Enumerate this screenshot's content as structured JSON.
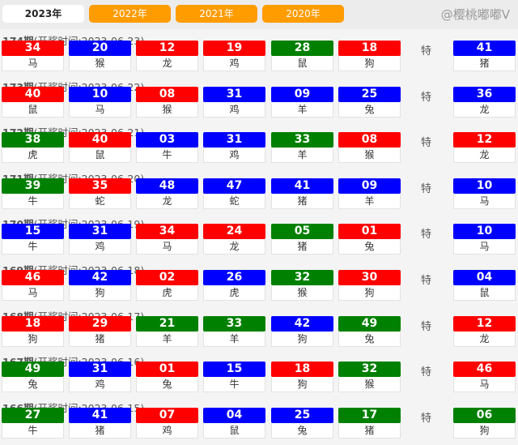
{
  "tabs": [
    {
      "label": "2023年",
      "active": true
    },
    {
      "label": "2022年"
    },
    {
      "label": "2021年"
    },
    {
      "label": "2020年"
    }
  ],
  "colors": {
    "red": "#ff0000",
    "blue": "#0000ff",
    "green": "#008000",
    "tab": "#ff9c00"
  },
  "special_label": "特",
  "watermark": "@樱桃嘟嘟V",
  "periods": [
    {
      "num": "174期",
      "time": "(开奖时间:2023-06-23)",
      "balls": [
        [
          "34",
          "red",
          "马"
        ],
        [
          "20",
          "blue",
          "猴"
        ],
        [
          "12",
          "red",
          "龙"
        ],
        [
          "19",
          "red",
          "鸡"
        ],
        [
          "28",
          "green",
          "鼠"
        ],
        [
          "18",
          "red",
          "狗"
        ]
      ],
      "special": [
        "41",
        "blue",
        "猪"
      ]
    },
    {
      "num": "173期",
      "time": "(开奖时间:2023-06-22)",
      "balls": [
        [
          "40",
          "red",
          "鼠"
        ],
        [
          "10",
          "blue",
          "马"
        ],
        [
          "08",
          "red",
          "猴"
        ],
        [
          "31",
          "blue",
          "鸡"
        ],
        [
          "09",
          "blue",
          "羊"
        ],
        [
          "25",
          "blue",
          "兔"
        ]
      ],
      "special": [
        "36",
        "blue",
        "龙"
      ]
    },
    {
      "num": "172期",
      "time": "(开奖时间:2023-06-21)",
      "balls": [
        [
          "38",
          "green",
          "虎"
        ],
        [
          "40",
          "red",
          "鼠"
        ],
        [
          "03",
          "blue",
          "牛"
        ],
        [
          "31",
          "blue",
          "鸡"
        ],
        [
          "33",
          "green",
          "羊"
        ],
        [
          "08",
          "red",
          "猴"
        ]
      ],
      "special": [
        "12",
        "red",
        "龙"
      ]
    },
    {
      "num": "171期",
      "time": "(开奖时间:2023-06-20)",
      "balls": [
        [
          "39",
          "green",
          "牛"
        ],
        [
          "35",
          "red",
          "蛇"
        ],
        [
          "48",
          "blue",
          "龙"
        ],
        [
          "47",
          "blue",
          "蛇"
        ],
        [
          "41",
          "blue",
          "猪"
        ],
        [
          "09",
          "blue",
          "羊"
        ]
      ],
      "special": [
        "10",
        "blue",
        "马"
      ]
    },
    {
      "num": "170期",
      "time": "(开奖时间:2023-06-19)",
      "balls": [
        [
          "15",
          "blue",
          "牛"
        ],
        [
          "31",
          "blue",
          "鸡"
        ],
        [
          "34",
          "red",
          "马"
        ],
        [
          "24",
          "red",
          "龙"
        ],
        [
          "05",
          "green",
          "猪"
        ],
        [
          "01",
          "red",
          "兔"
        ]
      ],
      "special": [
        "10",
        "blue",
        "马"
      ]
    },
    {
      "num": "169期",
      "time": "(开奖时间:2023-06-18)",
      "balls": [
        [
          "46",
          "red",
          "马"
        ],
        [
          "42",
          "blue",
          "狗"
        ],
        [
          "02",
          "red",
          "虎"
        ],
        [
          "26",
          "blue",
          "虎"
        ],
        [
          "32",
          "green",
          "猴"
        ],
        [
          "30",
          "red",
          "狗"
        ]
      ],
      "special": [
        "04",
        "blue",
        "鼠"
      ]
    },
    {
      "num": "168期",
      "time": "(开奖时间:2023-06-17)",
      "balls": [
        [
          "18",
          "red",
          "狗"
        ],
        [
          "29",
          "red",
          "猪"
        ],
        [
          "21",
          "green",
          "羊"
        ],
        [
          "33",
          "green",
          "羊"
        ],
        [
          "42",
          "blue",
          "狗"
        ],
        [
          "49",
          "green",
          "兔"
        ]
      ],
      "special": [
        "12",
        "red",
        "龙"
      ]
    },
    {
      "num": "167期",
      "time": "(开奖时间:2023-06-16)",
      "balls": [
        [
          "49",
          "green",
          "兔"
        ],
        [
          "31",
          "blue",
          "鸡"
        ],
        [
          "01",
          "red",
          "兔"
        ],
        [
          "15",
          "blue",
          "牛"
        ],
        [
          "18",
          "red",
          "狗"
        ],
        [
          "32",
          "green",
          "猴"
        ]
      ],
      "special": [
        "46",
        "red",
        "马"
      ]
    },
    {
      "num": "166期",
      "time": "(开奖时间:2023-06-15)",
      "balls": [
        [
          "27",
          "green",
          "牛"
        ],
        [
          "41",
          "blue",
          "猪"
        ],
        [
          "07",
          "red",
          "鸡"
        ],
        [
          "04",
          "blue",
          "鼠"
        ],
        [
          "25",
          "blue",
          "兔"
        ],
        [
          "17",
          "green",
          "猪"
        ]
      ],
      "special": [
        "06",
        "green",
        "狗"
      ]
    }
  ]
}
